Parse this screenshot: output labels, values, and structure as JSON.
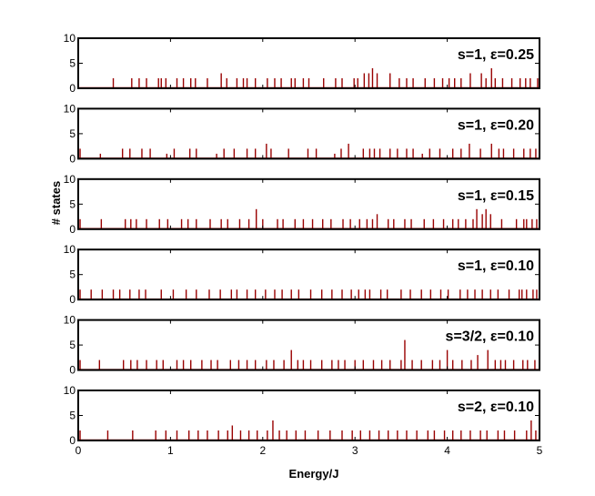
{
  "chart_data": {
    "type": "bar",
    "xlabel": "Energy/J",
    "ylabel": "# states",
    "xlim": [
      0,
      5
    ],
    "ylim": [
      0,
      10
    ],
    "x_ticks": [
      "0",
      "1",
      "2",
      "3",
      "4",
      "5"
    ],
    "y_ticks": [
      "0",
      "5",
      "10"
    ],
    "bar_color": "#990000",
    "panels": [
      {
        "label": "s=1, ε=0.25",
        "spikes": [
          [
            0.38,
            2
          ],
          [
            0.58,
            2
          ],
          [
            0.66,
            2
          ],
          [
            0.74,
            2
          ],
          [
            0.87,
            2
          ],
          [
            0.9,
            2
          ],
          [
            0.95,
            2
          ],
          [
            1.07,
            2
          ],
          [
            1.14,
            2
          ],
          [
            1.22,
            2
          ],
          [
            1.27,
            2
          ],
          [
            1.4,
            2
          ],
          [
            1.55,
            3
          ],
          [
            1.61,
            2
          ],
          [
            1.72,
            2
          ],
          [
            1.79,
            2
          ],
          [
            1.83,
            2
          ],
          [
            1.92,
            2
          ],
          [
            2.05,
            2
          ],
          [
            2.13,
            2
          ],
          [
            2.2,
            2
          ],
          [
            2.31,
            2
          ],
          [
            2.35,
            2
          ],
          [
            2.44,
            2
          ],
          [
            2.5,
            2
          ],
          [
            2.66,
            2
          ],
          [
            2.79,
            2
          ],
          [
            2.86,
            2
          ],
          [
            2.99,
            2
          ],
          [
            3.03,
            2
          ],
          [
            3.1,
            3
          ],
          [
            3.15,
            3
          ],
          [
            3.19,
            4
          ],
          [
            3.24,
            3
          ],
          [
            3.38,
            3
          ],
          [
            3.48,
            2
          ],
          [
            3.56,
            2
          ],
          [
            3.63,
            2
          ],
          [
            3.76,
            2
          ],
          [
            3.86,
            2
          ],
          [
            3.95,
            2
          ],
          [
            4.02,
            2
          ],
          [
            4.08,
            2
          ],
          [
            4.15,
            2
          ],
          [
            4.25,
            3
          ],
          [
            4.37,
            3
          ],
          [
            4.42,
            2
          ],
          [
            4.48,
            4
          ],
          [
            4.52,
            2
          ],
          [
            4.6,
            2
          ],
          [
            4.7,
            2
          ],
          [
            4.79,
            2
          ],
          [
            4.85,
            2
          ],
          [
            4.9,
            2
          ],
          [
            4.98,
            2
          ]
        ]
      },
      {
        "label": "s=1, ε=0.20",
        "spikes": [
          [
            0.02,
            2
          ],
          [
            0.24,
            1
          ],
          [
            0.48,
            2
          ],
          [
            0.56,
            2
          ],
          [
            0.69,
            2
          ],
          [
            0.78,
            2
          ],
          [
            0.96,
            1
          ],
          [
            1.04,
            2
          ],
          [
            1.21,
            2
          ],
          [
            1.28,
            2
          ],
          [
            1.5,
            1
          ],
          [
            1.58,
            2
          ],
          [
            1.69,
            2
          ],
          [
            1.83,
            2
          ],
          [
            1.92,
            2
          ],
          [
            2.04,
            3
          ],
          [
            2.09,
            2
          ],
          [
            2.28,
            2
          ],
          [
            2.49,
            2
          ],
          [
            2.58,
            2
          ],
          [
            2.78,
            1
          ],
          [
            2.85,
            2
          ],
          [
            2.93,
            3
          ],
          [
            3.09,
            2
          ],
          [
            3.16,
            2
          ],
          [
            3.21,
            2
          ],
          [
            3.27,
            2
          ],
          [
            3.38,
            2
          ],
          [
            3.46,
            2
          ],
          [
            3.56,
            2
          ],
          [
            3.63,
            2
          ],
          [
            3.73,
            1
          ],
          [
            3.81,
            2
          ],
          [
            3.92,
            2
          ],
          [
            4.06,
            2
          ],
          [
            4.15,
            2
          ],
          [
            4.24,
            3
          ],
          [
            4.36,
            2
          ],
          [
            4.48,
            3
          ],
          [
            4.56,
            2
          ],
          [
            4.61,
            2
          ],
          [
            4.72,
            2
          ],
          [
            4.83,
            2
          ],
          [
            4.9,
            2
          ],
          [
            4.96,
            2
          ]
        ]
      },
      {
        "label": "s=1, ε=0.15",
        "spikes": [
          [
            0.02,
            2
          ],
          [
            0.25,
            2
          ],
          [
            0.51,
            2
          ],
          [
            0.57,
            2
          ],
          [
            0.63,
            2
          ],
          [
            0.74,
            2
          ],
          [
            0.88,
            2
          ],
          [
            0.97,
            2
          ],
          [
            1.12,
            2
          ],
          [
            1.19,
            2
          ],
          [
            1.28,
            2
          ],
          [
            1.43,
            2
          ],
          [
            1.55,
            2
          ],
          [
            1.62,
            2
          ],
          [
            1.75,
            2
          ],
          [
            1.85,
            2
          ],
          [
            1.93,
            4
          ],
          [
            2.0,
            2
          ],
          [
            2.16,
            2
          ],
          [
            2.22,
            2
          ],
          [
            2.35,
            2
          ],
          [
            2.44,
            2
          ],
          [
            2.54,
            2
          ],
          [
            2.65,
            2
          ],
          [
            2.74,
            2
          ],
          [
            2.87,
            2
          ],
          [
            2.95,
            2
          ],
          [
            3.05,
            2
          ],
          [
            3.13,
            2
          ],
          [
            3.19,
            2
          ],
          [
            3.24,
            3
          ],
          [
            3.36,
            2
          ],
          [
            3.42,
            2
          ],
          [
            3.54,
            2
          ],
          [
            3.61,
            2
          ],
          [
            3.75,
            2
          ],
          [
            3.85,
            2
          ],
          [
            3.96,
            2
          ],
          [
            4.06,
            2
          ],
          [
            4.12,
            2
          ],
          [
            4.2,
            2
          ],
          [
            4.28,
            2
          ],
          [
            4.32,
            4
          ],
          [
            4.38,
            3
          ],
          [
            4.42,
            4
          ],
          [
            4.47,
            3
          ],
          [
            4.59,
            2
          ],
          [
            4.75,
            2
          ],
          [
            4.83,
            2
          ],
          [
            4.86,
            2
          ],
          [
            4.92,
            2
          ],
          [
            4.97,
            2
          ]
        ]
      },
      {
        "label": "s=1, ε=0.10",
        "spikes": [
          [
            0.02,
            2
          ],
          [
            0.14,
            2
          ],
          [
            0.26,
            2
          ],
          [
            0.38,
            2
          ],
          [
            0.45,
            2
          ],
          [
            0.56,
            2
          ],
          [
            0.66,
            2
          ],
          [
            0.73,
            2
          ],
          [
            0.9,
            2
          ],
          [
            1.03,
            2
          ],
          [
            1.17,
            2
          ],
          [
            1.28,
            2
          ],
          [
            1.42,
            2
          ],
          [
            1.54,
            2
          ],
          [
            1.66,
            2
          ],
          [
            1.72,
            2
          ],
          [
            1.83,
            2
          ],
          [
            1.92,
            2
          ],
          [
            2.03,
            2
          ],
          [
            2.13,
            2
          ],
          [
            2.21,
            2
          ],
          [
            2.31,
            2
          ],
          [
            2.39,
            2
          ],
          [
            2.52,
            2
          ],
          [
            2.64,
            2
          ],
          [
            2.75,
            2
          ],
          [
            2.86,
            2
          ],
          [
            2.96,
            2
          ],
          [
            3.04,
            2
          ],
          [
            3.11,
            2
          ],
          [
            3.16,
            2
          ],
          [
            3.28,
            2
          ],
          [
            3.35,
            2
          ],
          [
            3.5,
            2
          ],
          [
            3.6,
            2
          ],
          [
            3.72,
            2
          ],
          [
            3.82,
            2
          ],
          [
            3.93,
            2
          ],
          [
            4.01,
            2
          ],
          [
            4.14,
            2
          ],
          [
            4.22,
            2
          ],
          [
            4.3,
            2
          ],
          [
            4.38,
            2
          ],
          [
            4.47,
            2
          ],
          [
            4.55,
            2
          ],
          [
            4.67,
            2
          ],
          [
            4.78,
            2
          ],
          [
            4.81,
            2
          ],
          [
            4.86,
            2
          ],
          [
            4.93,
            2
          ],
          [
            4.97,
            2
          ]
        ]
      },
      {
        "label": "s=3/2, ε=0.10",
        "spikes": [
          [
            0.02,
            2
          ],
          [
            0.23,
            2
          ],
          [
            0.49,
            2
          ],
          [
            0.57,
            2
          ],
          [
            0.64,
            2
          ],
          [
            0.74,
            2
          ],
          [
            0.85,
            2
          ],
          [
            0.92,
            2
          ],
          [
            1.07,
            2
          ],
          [
            1.14,
            2
          ],
          [
            1.22,
            2
          ],
          [
            1.34,
            2
          ],
          [
            1.44,
            2
          ],
          [
            1.51,
            2
          ],
          [
            1.65,
            2
          ],
          [
            1.74,
            2
          ],
          [
            1.83,
            2
          ],
          [
            1.92,
            2
          ],
          [
            2.04,
            2
          ],
          [
            2.12,
            2
          ],
          [
            2.23,
            2
          ],
          [
            2.31,
            4
          ],
          [
            2.38,
            2
          ],
          [
            2.44,
            2
          ],
          [
            2.52,
            2
          ],
          [
            2.64,
            2
          ],
          [
            2.75,
            2
          ],
          [
            2.82,
            2
          ],
          [
            2.89,
            2
          ],
          [
            3.0,
            2
          ],
          [
            3.09,
            2
          ],
          [
            3.2,
            2
          ],
          [
            3.29,
            2
          ],
          [
            3.38,
            2
          ],
          [
            3.5,
            2
          ],
          [
            3.54,
            6
          ],
          [
            3.62,
            2
          ],
          [
            3.72,
            2
          ],
          [
            3.84,
            2
          ],
          [
            3.92,
            2
          ],
          [
            4.0,
            4
          ],
          [
            4.06,
            2
          ],
          [
            4.16,
            2
          ],
          [
            4.26,
            2
          ],
          [
            4.33,
            3
          ],
          [
            4.44,
            4
          ],
          [
            4.52,
            2
          ],
          [
            4.58,
            2
          ],
          [
            4.63,
            2
          ],
          [
            4.72,
            2
          ],
          [
            4.82,
            2
          ],
          [
            4.87,
            2
          ],
          [
            4.95,
            2
          ]
        ]
      },
      {
        "label": "s=2, ε=0.10",
        "spikes": [
          [
            0.02,
            2
          ],
          [
            0.32,
            2
          ],
          [
            0.59,
            2
          ],
          [
            0.84,
            2
          ],
          [
            0.95,
            2
          ],
          [
            1.07,
            2
          ],
          [
            1.2,
            2
          ],
          [
            1.3,
            2
          ],
          [
            1.4,
            2
          ],
          [
            1.52,
            2
          ],
          [
            1.62,
            2
          ],
          [
            1.67,
            3
          ],
          [
            1.76,
            2
          ],
          [
            1.85,
            2
          ],
          [
            1.94,
            2
          ],
          [
            2.05,
            2
          ],
          [
            2.11,
            4
          ],
          [
            2.18,
            2
          ],
          [
            2.26,
            2
          ],
          [
            2.36,
            2
          ],
          [
            2.46,
            2
          ],
          [
            2.6,
            2
          ],
          [
            2.73,
            2
          ],
          [
            2.86,
            2
          ],
          [
            2.97,
            2
          ],
          [
            3.06,
            2
          ],
          [
            3.16,
            2
          ],
          [
            3.26,
            2
          ],
          [
            3.36,
            2
          ],
          [
            3.46,
            2
          ],
          [
            3.56,
            2
          ],
          [
            3.67,
            2
          ],
          [
            3.79,
            2
          ],
          [
            3.86,
            2
          ],
          [
            3.97,
            2
          ],
          [
            4.06,
            2
          ],
          [
            4.15,
            2
          ],
          [
            4.25,
            2
          ],
          [
            4.36,
            2
          ],
          [
            4.43,
            2
          ],
          [
            4.55,
            2
          ],
          [
            4.62,
            2
          ],
          [
            4.73,
            2
          ],
          [
            4.86,
            2
          ],
          [
            4.91,
            4
          ],
          [
            4.96,
            2
          ]
        ]
      }
    ]
  }
}
